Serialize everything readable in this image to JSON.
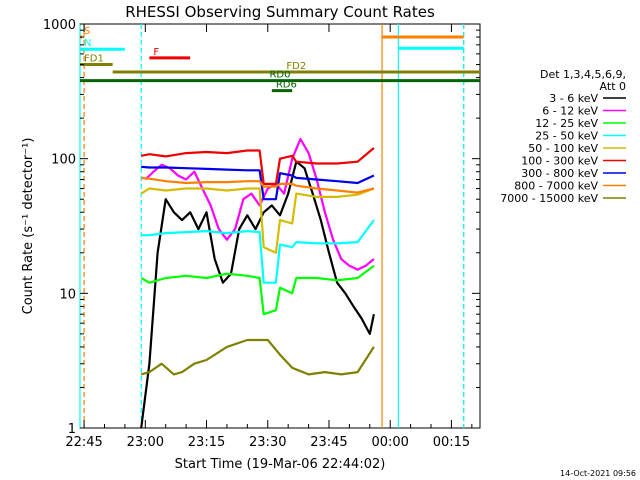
{
  "chart_data": {
    "type": "line",
    "title": "RHESSI Observing Summary Count Rates",
    "xlabel": "Start Time (19-Mar-06 22:44:02)",
    "ylabel": "Count Rate (s⁻¹ detector⁻¹)",
    "yscale": "log",
    "xlim": [
      "22:44",
      "00:22"
    ],
    "ylim": [
      1,
      1000
    ],
    "x_ticks": [
      "22:45",
      "23:00",
      "23:15",
      "23:30",
      "23:45",
      "00:00",
      "00:15"
    ],
    "y_ticks": [
      "1",
      "10",
      "100",
      "1000"
    ],
    "grid": false,
    "legend_position": "right",
    "legend_header": [
      "Det 1,3,4,5,6,9,",
      "Att 0"
    ],
    "footer_date": "14-Oct-2021 09:56",
    "series": [
      {
        "name": "3 - 6 keV",
        "color": "#000000",
        "x": [
          "22:59",
          "23:01",
          "23:03",
          "23:05",
          "23:07",
          "23:09",
          "23:11",
          "23:13",
          "23:15",
          "23:17",
          "23:19",
          "23:21",
          "23:23",
          "23:25",
          "23:27",
          "23:29",
          "23:31",
          "23:33",
          "23:35",
          "23:37",
          "23:39",
          "23:41",
          "23:43",
          "23:45",
          "23:47",
          "23:49",
          "23:51",
          "23:53",
          "23:55",
          "23:56"
        ],
        "values": [
          1,
          3,
          20,
          50,
          40,
          35,
          40,
          30,
          40,
          18,
          12,
          14,
          30,
          38,
          30,
          40,
          45,
          38,
          55,
          95,
          85,
          55,
          35,
          20,
          12,
          10,
          8,
          6.5,
          5,
          7
        ]
      },
      {
        "name": "6 - 12 keV",
        "color": "#ff00ff",
        "x": [
          "23:00",
          "23:02",
          "23:04",
          "23:06",
          "23:08",
          "23:10",
          "23:12",
          "23:14",
          "23:16",
          "23:18",
          "23:20",
          "23:22",
          "23:24",
          "23:26",
          "23:28",
          "23:30",
          "23:32",
          "23:34",
          "23:36",
          "23:38",
          "23:40",
          "23:42",
          "23:44",
          "23:46",
          "23:48",
          "23:50",
          "23:52",
          "23:54",
          "23:56"
        ],
        "values": [
          70,
          80,
          90,
          85,
          75,
          70,
          80,
          60,
          45,
          30,
          25,
          30,
          50,
          55,
          45,
          60,
          65,
          55,
          100,
          140,
          110,
          70,
          40,
          25,
          18,
          16,
          15,
          16,
          18
        ]
      },
      {
        "name": "12 - 25 keV",
        "color": "#00ff00",
        "x": [
          "22:59",
          "23:01",
          "23:05",
          "23:10",
          "23:15",
          "23:20",
          "23:25",
          "23:28",
          "23:29",
          "23:32",
          "23:33",
          "23:36",
          "23:37",
          "23:42",
          "23:47",
          "23:52",
          "23:56"
        ],
        "values": [
          13,
          12,
          13,
          13.5,
          13,
          14,
          13.5,
          13,
          7,
          7.5,
          11,
          10,
          13,
          13,
          12.5,
          13,
          16
        ]
      },
      {
        "name": "25 - 50 keV",
        "color": "#00ffff",
        "x": [
          "22:59",
          "23:01",
          "23:05",
          "23:10",
          "23:15",
          "23:20",
          "23:25",
          "23:28",
          "23:29",
          "23:32",
          "23:33",
          "23:36",
          "23:37",
          "23:42",
          "23:47",
          "23:52",
          "23:56"
        ],
        "values": [
          27,
          27,
          28,
          28.5,
          29,
          28,
          29,
          28.5,
          12,
          12,
          23,
          22,
          24,
          23.5,
          23.5,
          24,
          35
        ]
      },
      {
        "name": "50 - 100 keV",
        "color": "#d4bc00",
        "x": [
          "22:59",
          "23:01",
          "23:05",
          "23:10",
          "23:15",
          "23:20",
          "23:25",
          "23:28",
          "23:29",
          "23:32",
          "23:33",
          "23:36",
          "23:37",
          "23:42",
          "23:47",
          "23:52",
          "23:56"
        ],
        "values": [
          55,
          60,
          58,
          60,
          60,
          58,
          60,
          60,
          22,
          20,
          35,
          33,
          55,
          52,
          52,
          54,
          60
        ]
      },
      {
        "name": "100 - 300 keV",
        "color": "#ee0000",
        "x": [
          "22:59",
          "23:01",
          "23:05",
          "23:10",
          "23:15",
          "23:20",
          "23:25",
          "23:28",
          "23:29",
          "23:32",
          "23:33",
          "23:36",
          "23:37",
          "23:42",
          "23:47",
          "23:52",
          "23:56"
        ],
        "values": [
          105,
          108,
          104,
          110,
          112,
          110,
          115,
          115,
          65,
          65,
          100,
          105,
          95,
          92,
          92,
          95,
          120
        ]
      },
      {
        "name": "300 - 800 keV",
        "color": "#0000ee",
        "x": [
          "22:59",
          "23:01",
          "23:05",
          "23:10",
          "23:15",
          "23:20",
          "23:25",
          "23:28",
          "23:29",
          "23:32",
          "23:33",
          "23:36",
          "23:37",
          "23:42",
          "23:47",
          "23:52",
          "23:56"
        ],
        "values": [
          87,
          86,
          86,
          85,
          84,
          83,
          82,
          82,
          50,
          50,
          78,
          75,
          72,
          70,
          68,
          66,
          75
        ]
      },
      {
        "name": "800 - 7000 keV",
        "color": "#ff7f00",
        "x": [
          "22:59",
          "23:01",
          "23:05",
          "23:10",
          "23:15",
          "23:20",
          "23:25",
          "23:28",
          "23:29",
          "23:32",
          "23:33",
          "23:36",
          "23:37",
          "23:42",
          "23:47",
          "23:52",
          "23:56"
        ],
        "values": [
          72,
          71,
          68,
          66,
          67,
          67,
          68,
          68,
          62,
          62,
          65,
          65,
          63,
          60,
          58,
          56,
          60
        ]
      },
      {
        "name": "7000 - 15000 keV",
        "color": "#808000",
        "x": [
          "22:59",
          "23:01",
          "23:04",
          "23:07",
          "23:09",
          "23:12",
          "23:15",
          "23:20",
          "23:25",
          "23:28",
          "23:30",
          "23:33",
          "23:36",
          "23:40",
          "23:44",
          "23:48",
          "23:52",
          "23:56"
        ],
        "values": [
          2.5,
          2.6,
          3,
          2.5,
          2.6,
          3,
          3.2,
          4,
          4.5,
          4.5,
          4.5,
          3.5,
          2.8,
          2.5,
          2.6,
          2.5,
          2.6,
          4
        ]
      }
    ],
    "annotations": [
      {
        "label": "S",
        "color": "#ff7f00",
        "t_start": "22:44",
        "t_end": "22:44",
        "level": 800
      },
      {
        "label": "N",
        "color": "#00ffff",
        "t_start": "22:44",
        "t_end": "22:55",
        "level": 650
      },
      {
        "label": "F",
        "color": "#ee0000",
        "t_start": "23:01",
        "t_end": "23:11",
        "level": 560
      },
      {
        "label": "FD1",
        "color": "#808000",
        "t_start": "22:44",
        "t_end": "22:52",
        "level": 500
      },
      {
        "label": "FD2",
        "color": "#808000",
        "t_start": "22:52",
        "t_end": "00:22",
        "level": 440
      },
      {
        "label": "RD0",
        "color": "#006400",
        "t_start": "22:44",
        "t_end": "00:22",
        "level": 380
      },
      {
        "label": "RD6",
        "color": "#006400",
        "t_start": "23:31",
        "t_end": "23:36",
        "level": 320
      }
    ],
    "vertical_markers": [
      {
        "t": "22:45",
        "color": "#ff7f00",
        "style": "dashed"
      },
      {
        "t": "22:44",
        "color": "#00ffff",
        "style": "solid"
      },
      {
        "t": "22:59",
        "color": "#00ffff",
        "style": "dashed"
      },
      {
        "t": "23:58",
        "color": "#ff7f00",
        "style": "solid"
      },
      {
        "t": "00:02",
        "color": "#00ffff",
        "style": "solid"
      },
      {
        "t": "00:18",
        "color": "#ff7f00",
        "style": "dashed"
      },
      {
        "t": "00:18",
        "color": "#00ffff",
        "style": "dashed"
      }
    ],
    "post_gap_segments": [
      {
        "color": "#ff7f00",
        "t_start": "23:58",
        "t_end": "00:18",
        "level": 800
      },
      {
        "color": "#00ffff",
        "t_start": "00:02",
        "t_end": "00:18",
        "level": 660
      }
    ]
  }
}
